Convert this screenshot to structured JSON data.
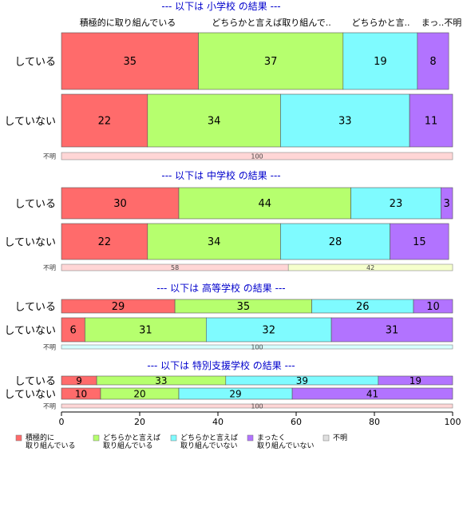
{
  "chart_data": {
    "type": "bar",
    "orientation": "horizontal",
    "stacked": true,
    "xlim": [
      0,
      100
    ],
    "x_ticks": [
      0,
      20,
      40,
      60,
      80,
      100
    ],
    "column_labels": [
      "積極的に取り組んでいる",
      "どちらかと言えば取り組んで..",
      "どちらかと言..",
      "まっ..不明"
    ],
    "legend": [
      {
        "label_lines": [
          "積極的に",
          "取り組んでいる"
        ],
        "color": "#ff6b6b"
      },
      {
        "label_lines": [
          "どちらかと言えば",
          "取り組んでいる"
        ],
        "color": "#b6ff6e"
      },
      {
        "label_lines": [
          "どちらかと言えば",
          "取り組んでいない"
        ],
        "color": "#7ffbff"
      },
      {
        "label_lines": [
          "まったく",
          "取り組んでいない"
        ],
        "color": "#b273ff"
      },
      {
        "label_lines": [
          "不明"
        ],
        "color": "#e0e0e0"
      }
    ],
    "unknown_colors": [
      "#ffd6d6",
      "#f5ffcc",
      "#d6feff"
    ],
    "unknown_label": "不明",
    "groups": [
      {
        "title": "--- 以下は 小学校 の結果 ---",
        "rows": [
          {
            "label": "している",
            "values": [
              35,
              37,
              19,
              8
            ]
          },
          {
            "label": "していない",
            "values": [
              22,
              34,
              33,
              11
            ]
          }
        ],
        "unknown": [
          {
            "value": 100,
            "color_index": 0
          }
        ]
      },
      {
        "title": "--- 以下は 中学校 の結果 ---",
        "rows": [
          {
            "label": "している",
            "values": [
              30,
              44,
              23,
              3
            ]
          },
          {
            "label": "していない",
            "values": [
              22,
              34,
              28,
              15
            ]
          }
        ],
        "unknown": [
          {
            "value": 58,
            "color_index": 0
          },
          {
            "value": 42,
            "color_index": 1
          }
        ]
      },
      {
        "title": "--- 以下は 高等学校 の結果 ---",
        "rows": [
          {
            "label": "している",
            "values": [
              29,
              35,
              26,
              10
            ]
          },
          {
            "label": "していない",
            "values": [
              6,
              31,
              32,
              31
            ]
          }
        ],
        "unknown": [
          {
            "value": 100,
            "color_index": 2
          }
        ]
      },
      {
        "title": "--- 以下は 特別支援学校 の結果 ---",
        "rows": [
          {
            "label": "している",
            "values": [
              9,
              33,
              39,
              19
            ]
          },
          {
            "label": "していない",
            "values": [
              10,
              20,
              29,
              41
            ]
          }
        ],
        "unknown": [
          {
            "value": 100,
            "color_index": 0
          }
        ]
      }
    ]
  }
}
